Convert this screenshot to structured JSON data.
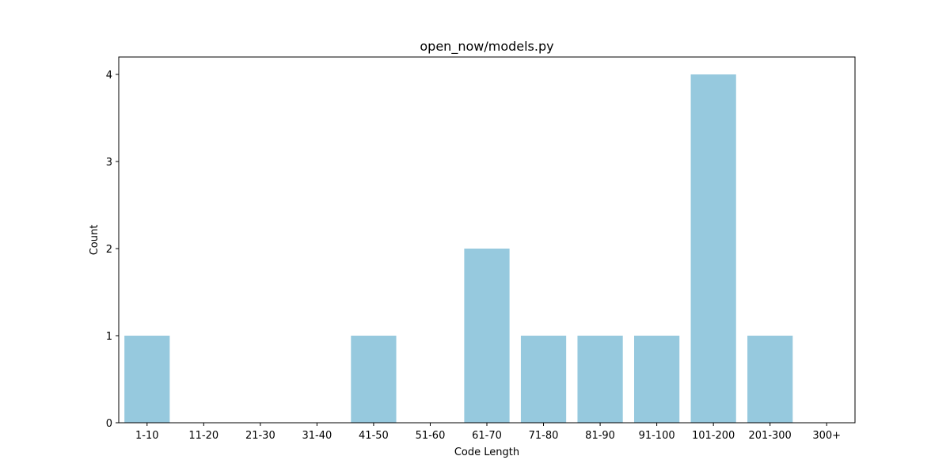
{
  "chart_data": {
    "type": "bar",
    "title": "open_now/models.py",
    "xlabel": "Code Length",
    "ylabel": "Count",
    "categories": [
      "1-10",
      "11-20",
      "21-30",
      "31-40",
      "41-50",
      "51-60",
      "61-70",
      "71-80",
      "81-90",
      "91-100",
      "101-200",
      "201-300",
      "300+"
    ],
    "values": [
      1,
      0,
      0,
      0,
      1,
      0,
      2,
      1,
      1,
      1,
      4,
      1,
      0
    ],
    "ylim": [
      0,
      4.2
    ],
    "yticks": [
      0,
      1,
      2,
      3,
      4
    ],
    "grid": false,
    "bar_color": "#96c9de"
  }
}
